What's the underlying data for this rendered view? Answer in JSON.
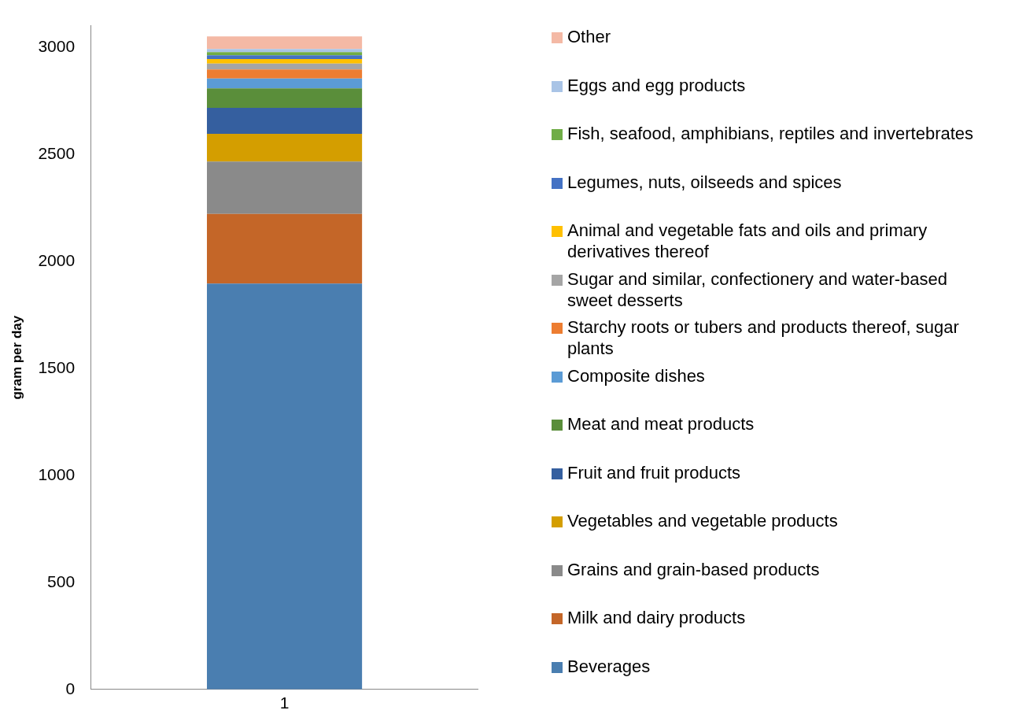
{
  "chart_data": {
    "type": "bar",
    "stacked": true,
    "ylabel": "gram per day",
    "categories": [
      "1"
    ],
    "ylim": [
      0,
      3100
    ],
    "yticks": [
      0,
      500,
      1000,
      1500,
      2000,
      2500,
      3000
    ],
    "grid": false,
    "legend": "right",
    "series": [
      {
        "name": "Beverages",
        "color": "#4a7eb0",
        "values": [
          1895
        ]
      },
      {
        "name": "Milk and dairy products",
        "color": "#c46628",
        "values": [
          326
        ]
      },
      {
        "name": "Grains and grain-based products",
        "color": "#8a8a8a",
        "values": [
          244
        ]
      },
      {
        "name": "Vegetables and vegetable products",
        "color": "#d49e00",
        "values": [
          130
        ]
      },
      {
        "name": "Fruit and fruit products",
        "color": "#355f9f",
        "values": [
          121
        ]
      },
      {
        "name": "Meat and meat products",
        "color": "#5a8e3a",
        "values": [
          91
        ]
      },
      {
        "name": "Composite dishes",
        "color": "#5b9bd5",
        "values": [
          46
        ]
      },
      {
        "name": "Starchy roots or tubers and products thereof, sugar plants",
        "color": "#ed7d31",
        "values": [
          42
        ]
      },
      {
        "name": "Sugar and similar, confectionery and water-based sweet desserts",
        "color": "#a5a5a5",
        "values": [
          28
        ]
      },
      {
        "name": "Animal and vegetable fats and oils and primary derivatives thereof",
        "color": "#ffc000",
        "values": [
          21
        ]
      },
      {
        "name": "Legumes, nuts, oilseeds and spices",
        "color": "#4472c4",
        "values": [
          18
        ]
      },
      {
        "name": "Fish, seafood, amphibians, reptiles and invertebrates",
        "color": "#70ad47",
        "values": [
          14
        ]
      },
      {
        "name": "Eggs and egg products",
        "color": "#a9c4e6",
        "values": [
          15
        ]
      },
      {
        "name": "Other",
        "color": "#f4b9a5",
        "values": [
          59
        ]
      }
    ]
  }
}
